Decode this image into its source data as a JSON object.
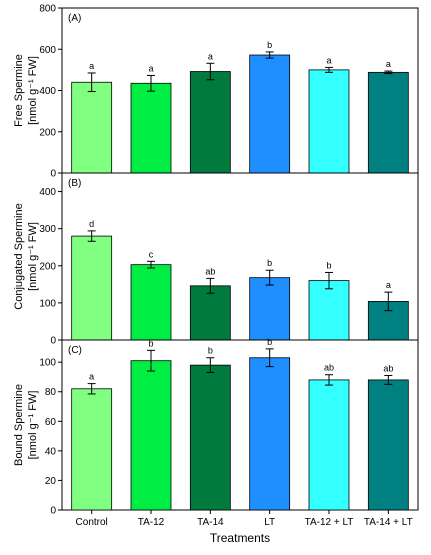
{
  "chart_data": {
    "type": "bar",
    "xlabel": "Treatments",
    "categories": [
      "Control",
      "TA-12",
      "TA-14",
      "LT",
      "TA-12 + LT",
      "TA-14 + LT"
    ],
    "colors": [
      "#80ff80",
      "#00ee44",
      "#007a3d",
      "#1f8fff",
      "#33ffff",
      "#008080"
    ],
    "panels": [
      {
        "tag": "(A)",
        "ylabel_line1": "Free Spermine",
        "ylabel_line2": "[nmol g⁻¹ FW]",
        "ylim": [
          0,
          800
        ],
        "yticks": [
          "0",
          "200",
          "400",
          "600",
          "800"
        ],
        "ytick_values": [
          0,
          200,
          400,
          600,
          800
        ],
        "values": [
          440,
          435,
          492,
          572,
          500,
          488
        ],
        "errors": [
          45,
          38,
          40,
          15,
          12,
          6
        ],
        "letters": [
          "a",
          "a",
          "a",
          "b",
          "a",
          "a"
        ]
      },
      {
        "tag": "(B)",
        "ylabel_line1": "Conjugated Spermine",
        "ylabel_line2": "[nmol g⁻¹ FW]",
        "ylim": [
          0,
          450
        ],
        "yticks": [
          "0",
          "100",
          "200",
          "300",
          "400"
        ],
        "ytick_values": [
          0,
          100,
          200,
          300,
          400
        ],
        "values": [
          280,
          203,
          146,
          168,
          160,
          104
        ],
        "errors": [
          14,
          9,
          20,
          20,
          22,
          25
        ],
        "letters": [
          "d",
          "c",
          "ab",
          "b",
          "b",
          "a"
        ]
      },
      {
        "tag": "(C)",
        "ylabel_line1": "Bound Spermine",
        "ylabel_line2": "[nmol g⁻¹ FW]",
        "ylim": [
          0,
          115
        ],
        "yticks": [
          "0",
          "20",
          "40",
          "60",
          "80",
          "100"
        ],
        "ytick_values": [
          0,
          20,
          40,
          60,
          80,
          100
        ],
        "values": [
          82,
          101,
          98,
          103,
          88,
          88
        ],
        "errors": [
          3.5,
          7,
          5,
          6,
          3.5,
          3
        ],
        "letters": [
          "a",
          "b",
          "b",
          "b",
          "ab",
          "ab"
        ]
      }
    ]
  }
}
